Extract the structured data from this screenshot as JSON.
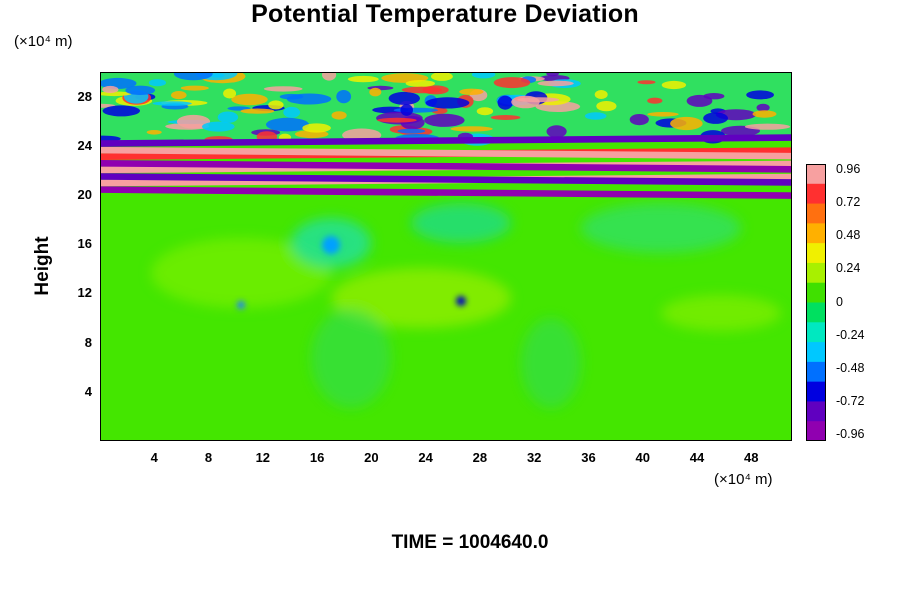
{
  "chart_data": {
    "type": "heatmap",
    "title": "Potential Temperature Deviation",
    "xlabel": "",
    "ylabel": "Height",
    "x_unit_label": "(×10⁴ m)",
    "y_unit_label": "(×10⁴ m)",
    "xlim": [
      0,
      51
    ],
    "ylim": [
      0,
      30
    ],
    "x_ticks": [
      "4",
      "8",
      "12",
      "16",
      "20",
      "24",
      "28",
      "32",
      "36",
      "40",
      "44",
      "48"
    ],
    "y_ticks": [
      "4",
      "8",
      "12",
      "16",
      "20",
      "24",
      "28"
    ],
    "colorbar": {
      "range": [
        -0.96,
        0.96
      ],
      "labels": [
        "0.96",
        "0.72",
        "0.48",
        "0.24",
        "0",
        "-0.24",
        "-0.48",
        "-0.72",
        "-0.96"
      ],
      "colors": [
        "#f7a0a0",
        "#ff3030",
        "#ff7010",
        "#ffb000",
        "#f0f000",
        "#a8f000",
        "#40e000",
        "#00e060",
        "#00e8c0",
        "#00c8ff",
        "#0070ff",
        "#0000e0",
        "#6000c0",
        "#9000b0"
      ]
    },
    "regions": [
      {
        "description_level": "background",
        "y_range": [
          0,
          20
        ],
        "value": 0.0
      },
      {
        "description_level": "banded",
        "y_range": [
          20,
          24
        ],
        "value_range": [
          -0.96,
          0.96
        ]
      },
      {
        "description_level": "wavy",
        "y_range": [
          24,
          30
        ],
        "value_range": [
          -0.96,
          0.96
        ]
      }
    ]
  },
  "footer": {
    "time_label": "TIME = 1004640.0"
  }
}
